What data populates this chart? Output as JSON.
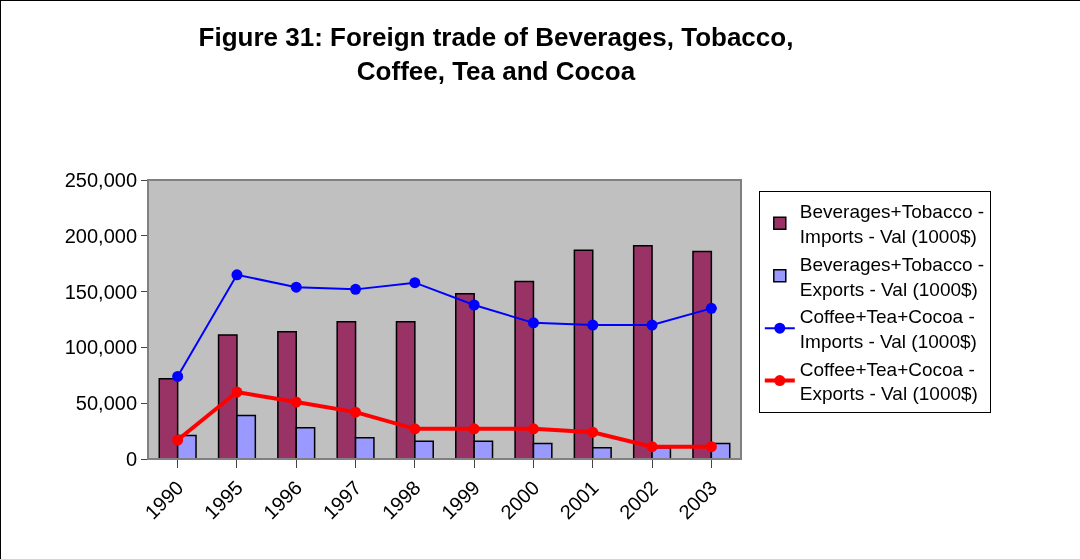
{
  "chart_data": {
    "type": "bar",
    "title": "Figure 31: Foreign trade of Beverages, Tobacco,\nCoffee, Tea and Cocoa",
    "categories": [
      "1990",
      "1995",
      "1996",
      "1997",
      "1998",
      "1999",
      "2000",
      "2001",
      "2002",
      "2003"
    ],
    "series": [
      {
        "name": "Beverages+Tobacco - Imports - Val (1000$)",
        "color": "#993366",
        "values": [
          72000,
          111000,
          114000,
          123000,
          123000,
          148000,
          159000,
          187000,
          191000,
          186000
        ]
      },
      {
        "name": "Beverages+Tobacco - Exports - Val (1000$)",
        "color": "#9999ff",
        "values": [
          21000,
          39000,
          28000,
          19000,
          16000,
          16000,
          14000,
          10000,
          10000,
          14000
        ]
      },
      {
        "name": "Coffee+Tea+Cocoa - Imports - Val (1000$)",
        "type": "line",
        "color": "#0000ff",
        "values": [
          74000,
          165000,
          154000,
          152000,
          158000,
          138000,
          122000,
          120000,
          120000,
          135000
        ]
      },
      {
        "name": "Coffee+Tea+Cocoa - Exports - Val (1000$)",
        "type": "line",
        "color": "#ff0000",
        "values": [
          17000,
          60000,
          51000,
          42000,
          27000,
          27000,
          27000,
          24000,
          11000,
          11000
        ]
      }
    ],
    "ylim": [
      0,
      250000
    ],
    "yticks": [
      {
        "value": 0,
        "label": "0"
      },
      {
        "value": 50000,
        "label": "50,000"
      },
      {
        "value": 100000,
        "label": "100,000"
      },
      {
        "value": 150000,
        "label": "150,000"
      },
      {
        "value": 200000,
        "label": "200,000"
      },
      {
        "value": 250000,
        "label": "250,000"
      }
    ],
    "grid": false,
    "legend": "right",
    "marker": "circle"
  }
}
